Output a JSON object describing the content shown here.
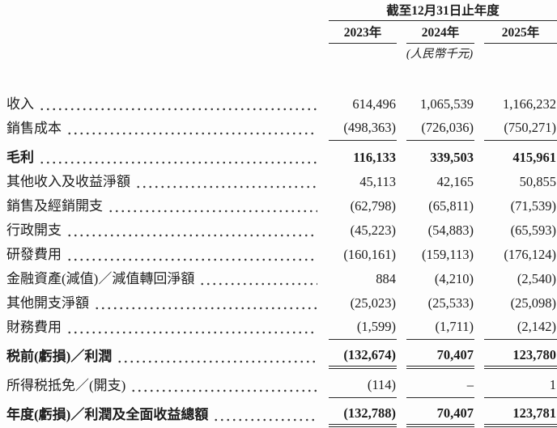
{
  "header": {
    "period_title": "截至12月31日止年度",
    "years": [
      "2023年",
      "2024年",
      "2025年"
    ],
    "currency_note": "(人民幣千元)"
  },
  "table": {
    "rows": [
      {
        "label": "收入",
        "values": [
          "614,496",
          "1,065,539",
          "1,166,232"
        ],
        "bold": false,
        "rule": "none"
      },
      {
        "label": "銷售成本",
        "values": [
          "(498,363)",
          "(726,036)",
          "(750,271)"
        ],
        "bold": false,
        "rule": "single"
      },
      {
        "label": "毛利",
        "values": [
          "116,133",
          "339,503",
          "415,961"
        ],
        "bold": true,
        "rule": "none"
      },
      {
        "label": "其他收入及收益淨額",
        "values": [
          "45,113",
          "42,165",
          "50,855"
        ],
        "bold": false,
        "rule": "none"
      },
      {
        "label": "銷售及經銷開支",
        "values": [
          "(62,798)",
          "(65,811)",
          "(71,539)"
        ],
        "bold": false,
        "rule": "none"
      },
      {
        "label": "行政開支",
        "values": [
          "(45,223)",
          "(54,883)",
          "(65,593)"
        ],
        "bold": false,
        "rule": "none"
      },
      {
        "label": "研發費用",
        "values": [
          "(160,161)",
          "(159,113)",
          "(176,124)"
        ],
        "bold": false,
        "rule": "none"
      },
      {
        "label": "金融資產(減值)／減值轉回淨額",
        "values": [
          "884",
          "(4,210)",
          "(2,540)"
        ],
        "bold": false,
        "rule": "none"
      },
      {
        "label": "其他開支淨額",
        "values": [
          "(25,023)",
          "(25,533)",
          "(25,098)"
        ],
        "bold": false,
        "rule": "none"
      },
      {
        "label": "財務費用",
        "values": [
          "(1,599)",
          "(1,711)",
          "(2,142)"
        ],
        "bold": false,
        "rule": "single"
      },
      {
        "label": "税前(虧損)／利潤",
        "values": [
          "(132,674)",
          "70,407",
          "123,780"
        ],
        "bold": true,
        "rule": "double"
      },
      {
        "label": "所得税抵免／(開支)",
        "values": [
          "(114)",
          "–",
          "1"
        ],
        "bold": false,
        "rule": "single"
      },
      {
        "label": "年度(虧損)／利潤及全面收益總額",
        "values": [
          "(132,788)",
          "70,407",
          "123,781"
        ],
        "bold": true,
        "rule": "double"
      }
    ]
  },
  "colors": {
    "text": "#1d1d1d",
    "rule": "#2b2b2b",
    "background": "#fdfdfd"
  }
}
